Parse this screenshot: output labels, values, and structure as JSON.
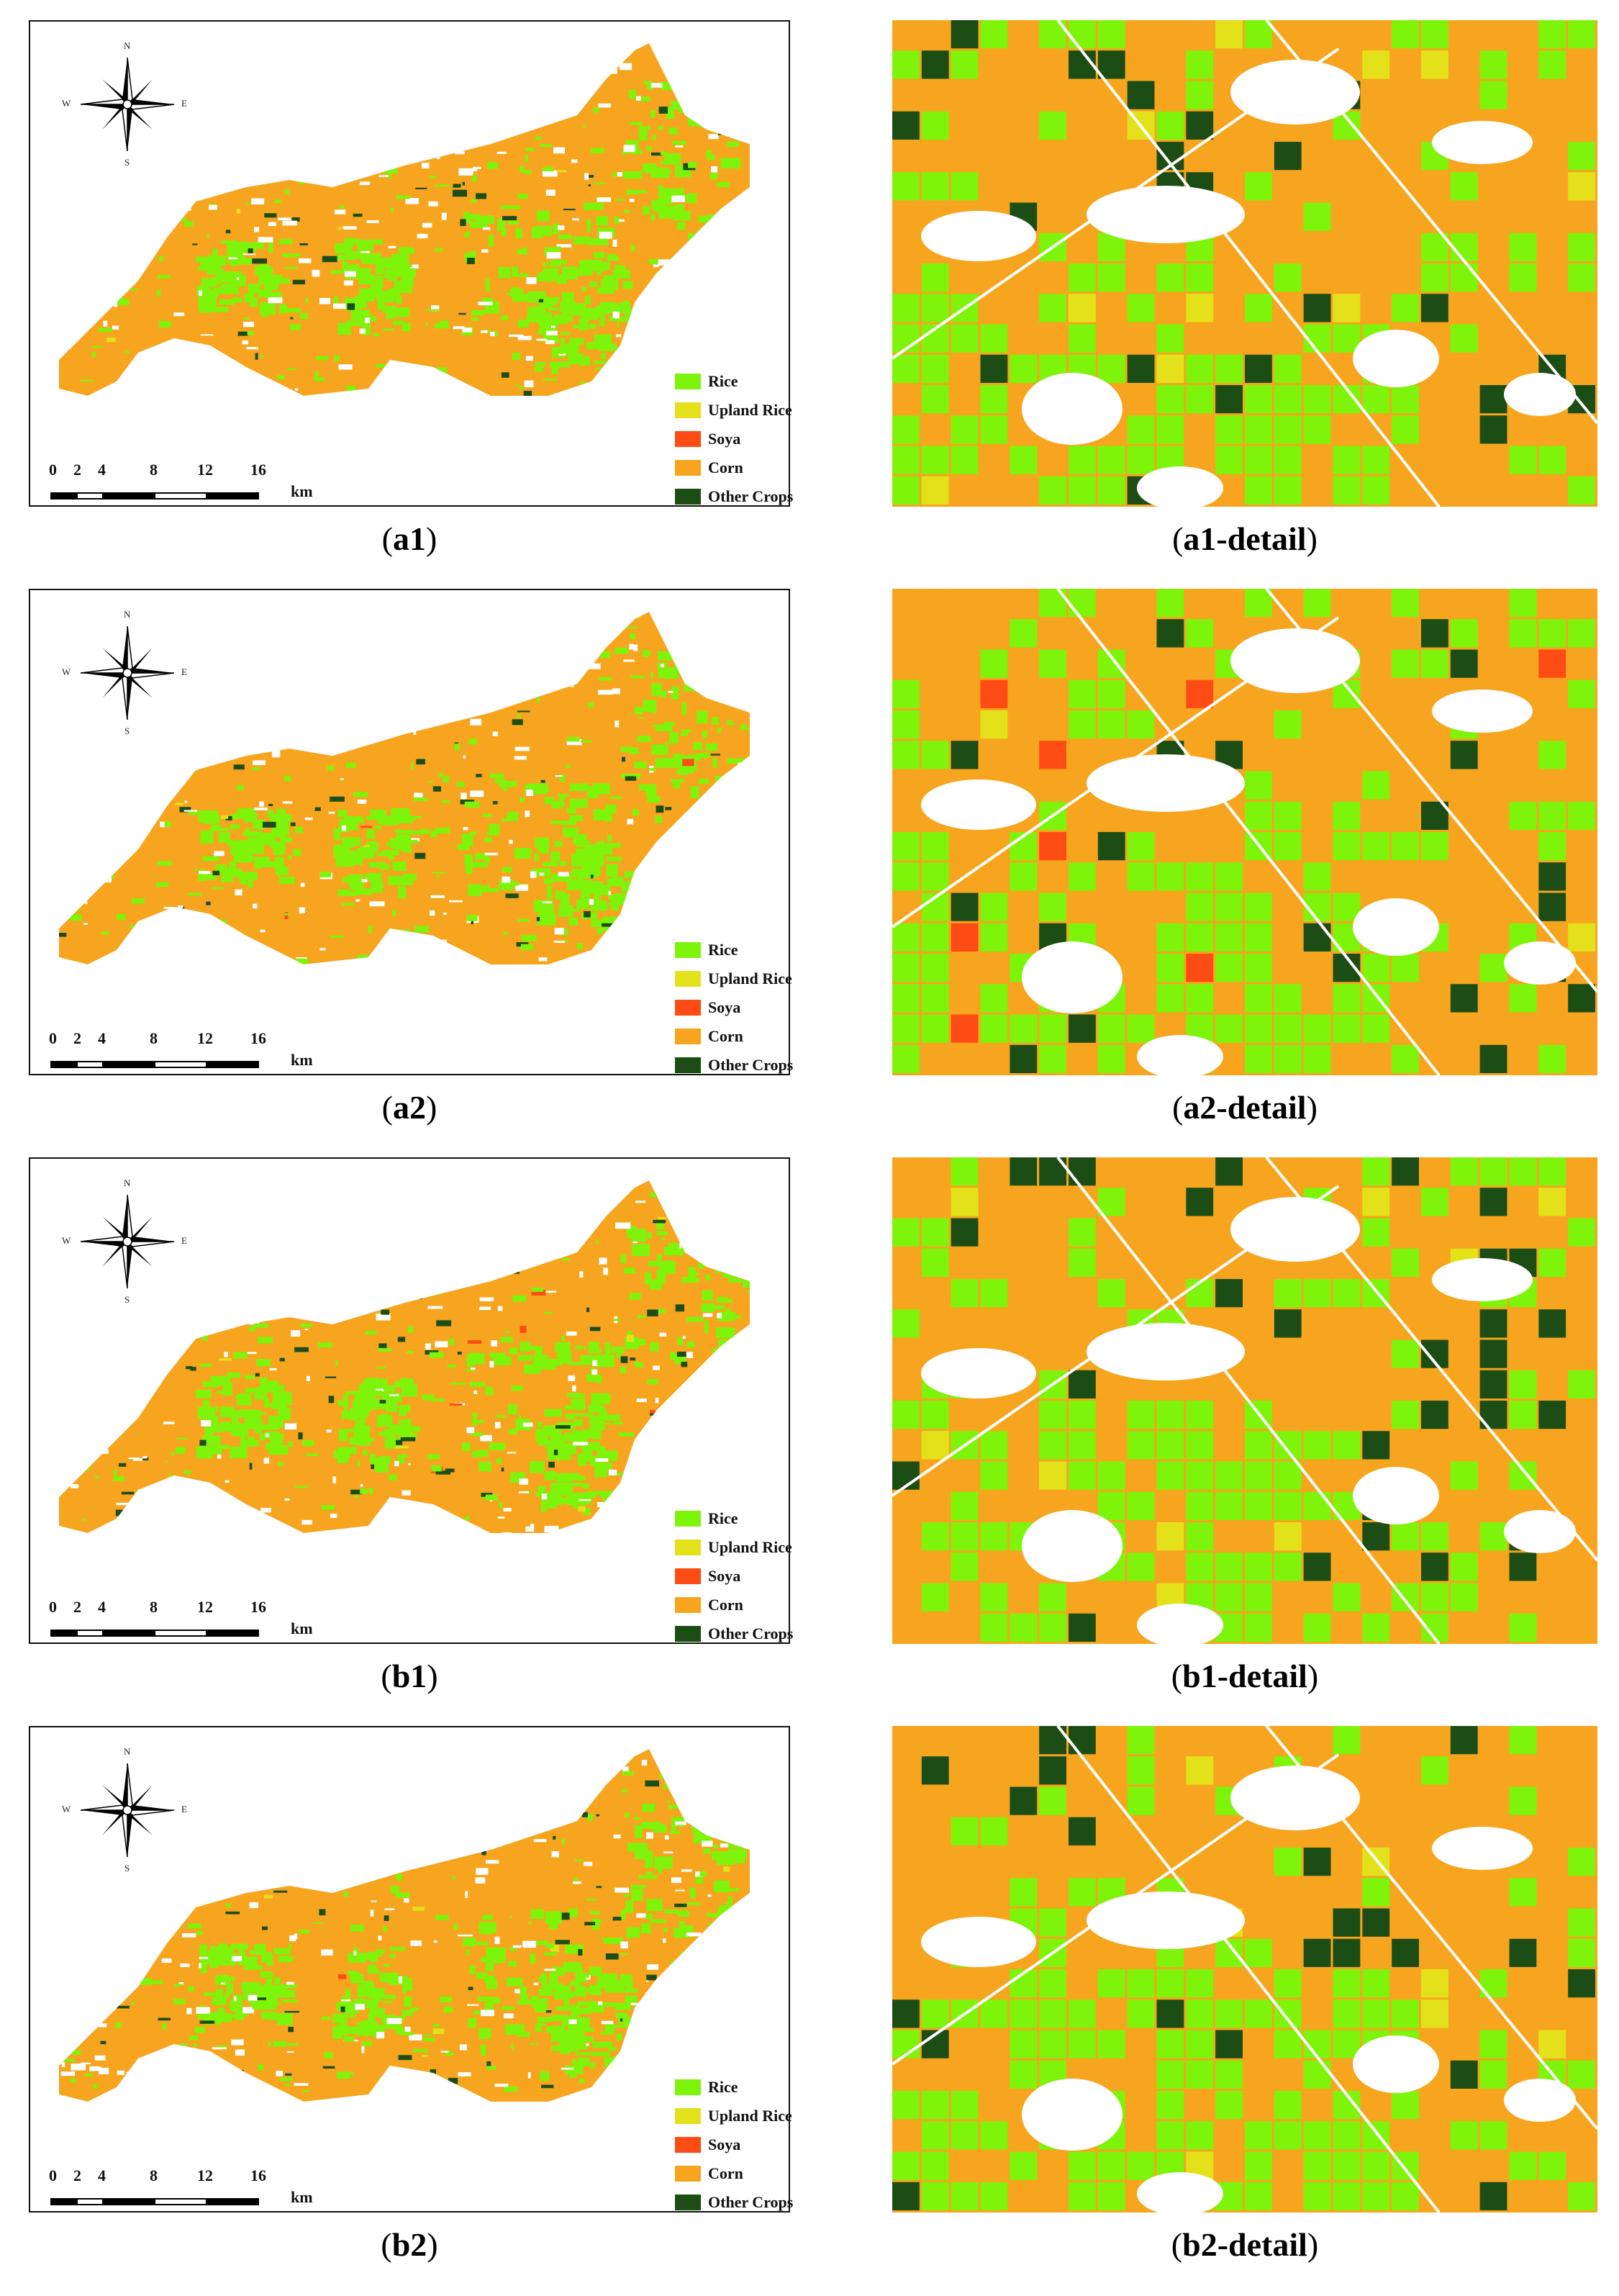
{
  "legend": {
    "items": [
      {
        "label": "Rice",
        "color": "#7ef40a"
      },
      {
        "label": "Upland Rice",
        "color": "#e3e21a"
      },
      {
        "label": "Soya",
        "color": "#ff4c14"
      },
      {
        "label": "Corn",
        "color": "#f7a51f"
      },
      {
        "label": "Other Crops",
        "color": "#1c4d14"
      }
    ]
  },
  "scale": {
    "ticks": [
      "0",
      "2",
      "4",
      "8",
      "12",
      "16"
    ],
    "unit": "km"
  },
  "compass": {
    "n": "N",
    "s": "S",
    "e": "E",
    "w": "W"
  },
  "panels": [
    {
      "map_caption": "a1",
      "detail_caption": "a1-detail"
    },
    {
      "map_caption": "a2",
      "detail_caption": "a2-detail"
    },
    {
      "map_caption": "b1",
      "detail_caption": "b1-detail"
    },
    {
      "map_caption": "b2",
      "detail_caption": "b2-detail"
    }
  ]
}
